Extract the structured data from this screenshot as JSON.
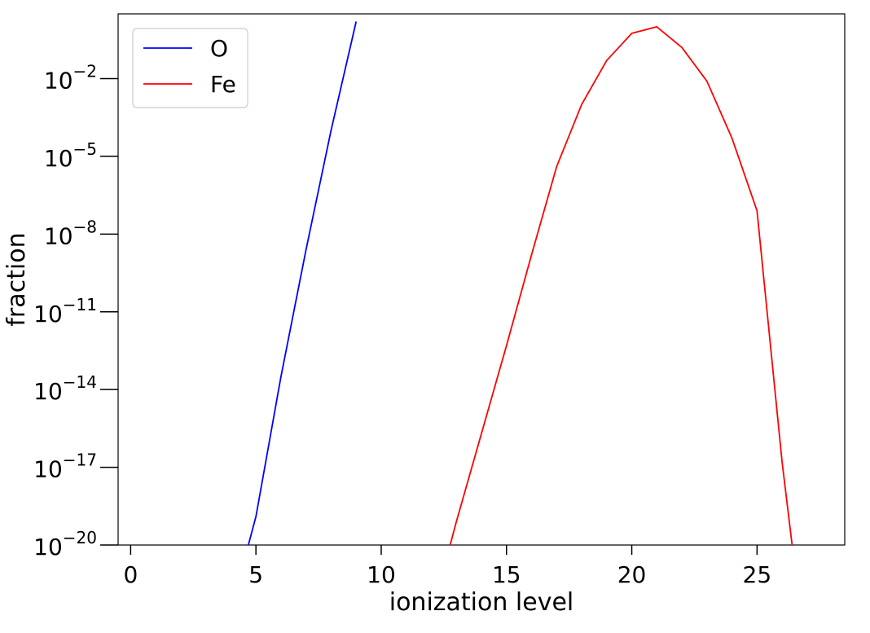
{
  "chart_data": {
    "type": "line",
    "xlabel": "ionization level",
    "ylabel": "fraction",
    "xlim": [
      -0.5,
      28.5
    ],
    "ylim_log10": [
      -20,
      0.5
    ],
    "yscale": "log",
    "grid": false,
    "legend_position": "top-left",
    "x_ticks": [
      {
        "value": 0,
        "label": "0"
      },
      {
        "value": 5,
        "label": "5"
      },
      {
        "value": 10,
        "label": "10"
      },
      {
        "value": 15,
        "label": "15"
      },
      {
        "value": 20,
        "label": "20"
      },
      {
        "value": 25,
        "label": "25"
      }
    ],
    "y_ticks": [
      {
        "exp": -2,
        "base": "10",
        "power": "−2"
      },
      {
        "exp": -5,
        "base": "10",
        "power": "−5"
      },
      {
        "exp": -8,
        "base": "10",
        "power": "−8"
      },
      {
        "exp": -11,
        "base": "10",
        "power": "−11"
      },
      {
        "exp": -14,
        "base": "10",
        "power": "−14"
      },
      {
        "exp": -17,
        "base": "10",
        "power": "−17"
      },
      {
        "exp": -20,
        "base": "10",
        "power": "−20"
      }
    ],
    "series": [
      {
        "name": "O",
        "color": "#0000ff",
        "x": [
          4.7,
          5,
          6,
          7,
          8,
          9
        ],
        "log10_y": [
          -20,
          -18.9,
          -13.5,
          -8.6,
          -4.0,
          0.2
        ]
      },
      {
        "name": "Fe",
        "color": "#ff0000",
        "x": [
          12.75,
          13,
          14,
          15,
          16,
          17,
          18,
          19,
          20,
          21,
          22,
          23,
          24,
          25,
          26,
          26.4
        ],
        "log10_y": [
          -20,
          -19.1,
          -15.7,
          -12.3,
          -8.8,
          -5.4,
          -3.0,
          -1.3,
          -0.25,
          0.0,
          -0.8,
          -2.1,
          -4.3,
          -7.1,
          -16.8,
          -20
        ]
      }
    ]
  }
}
